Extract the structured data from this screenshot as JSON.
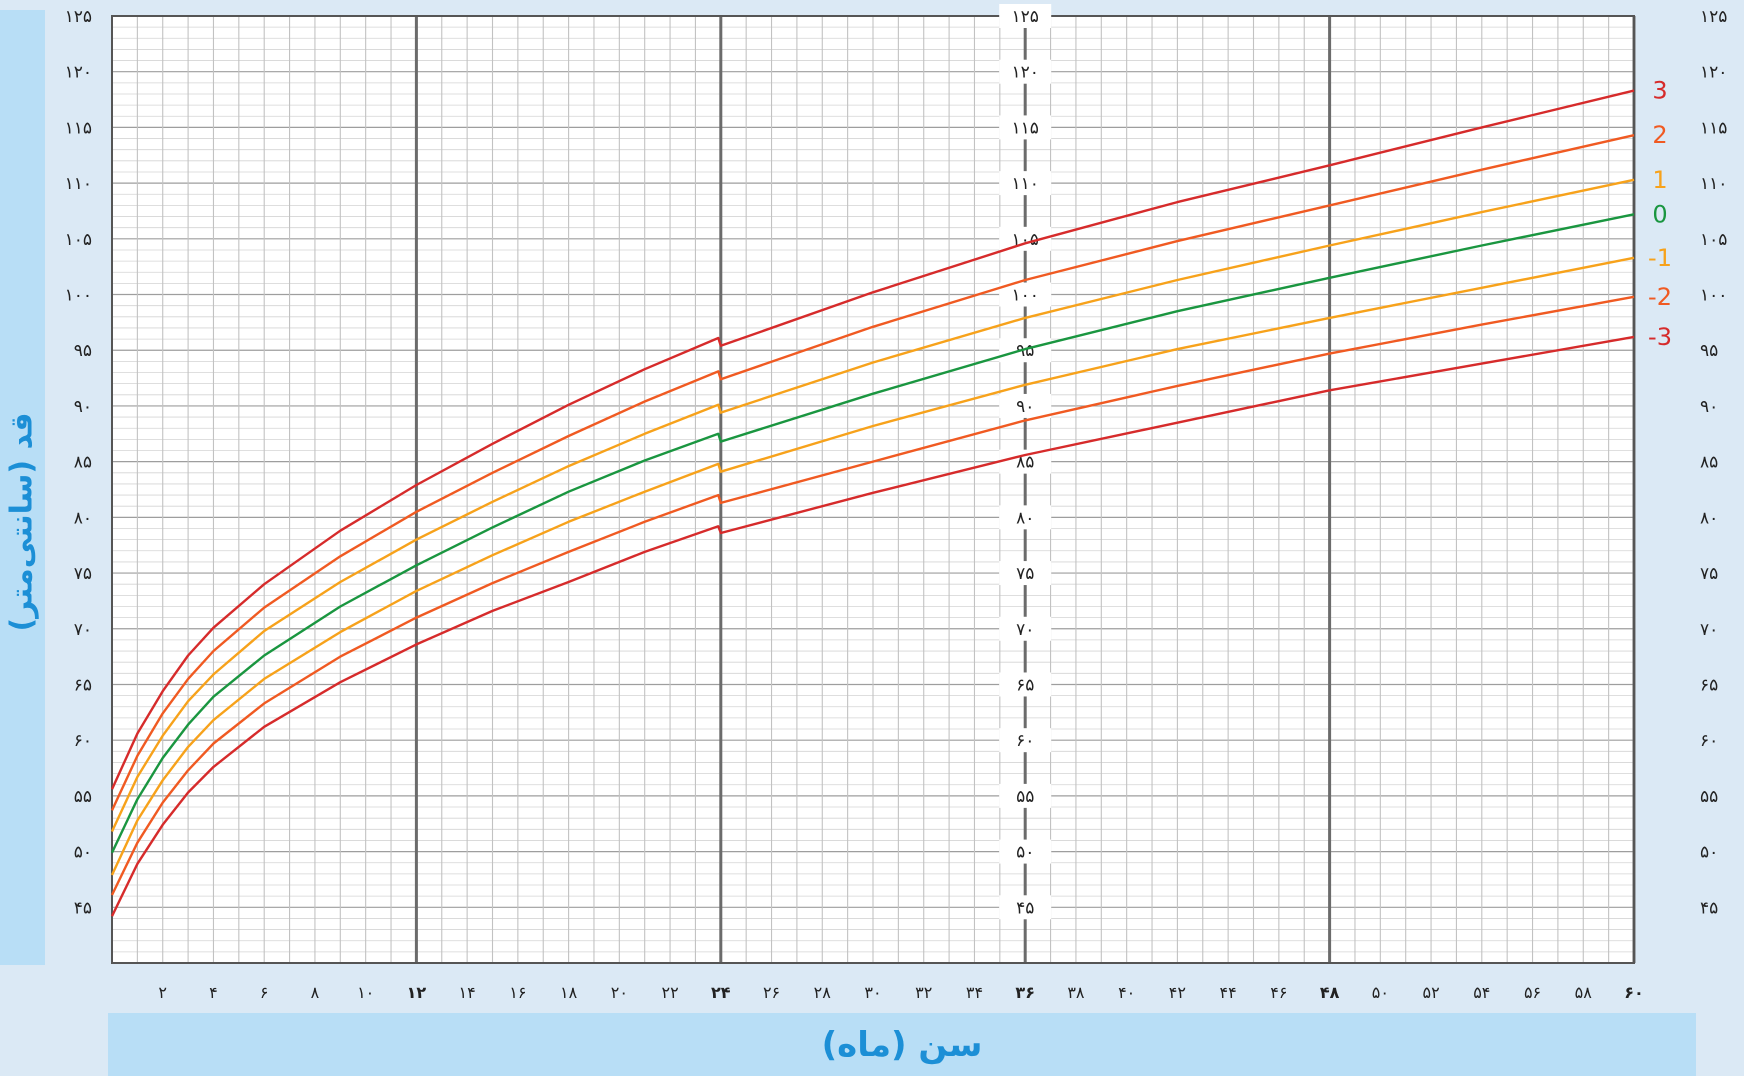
{
  "chart_data": {
    "type": "line",
    "ylabel": "قد (سانتی‌متر)",
    "xlabel": "سن (ماه)",
    "xlim": [
      0,
      60
    ],
    "ylim": [
      40,
      125
    ],
    "x_ticks": [
      {
        "value": 2,
        "label": "۲"
      },
      {
        "value": 4,
        "label": "۴"
      },
      {
        "value": 6,
        "label": "۶"
      },
      {
        "value": 8,
        "label": "۸"
      },
      {
        "value": 10,
        "label": "۱۰"
      },
      {
        "value": 12,
        "label": "۱۲",
        "bold": true
      },
      {
        "value": 14,
        "label": "۱۴"
      },
      {
        "value": 16,
        "label": "۱۶"
      },
      {
        "value": 18,
        "label": "۱۸"
      },
      {
        "value": 20,
        "label": "۲۰"
      },
      {
        "value": 22,
        "label": "۲۲"
      },
      {
        "value": 24,
        "label": "۲۴",
        "bold": true
      },
      {
        "value": 26,
        "label": "۲۶"
      },
      {
        "value": 28,
        "label": "۲۸"
      },
      {
        "value": 30,
        "label": "۳۰"
      },
      {
        "value": 32,
        "label": "۳۲"
      },
      {
        "value": 34,
        "label": "۳۴"
      },
      {
        "value": 36,
        "label": "۳۶",
        "bold": true
      },
      {
        "value": 38,
        "label": "۳۸"
      },
      {
        "value": 40,
        "label": "۴۰"
      },
      {
        "value": 42,
        "label": "۴۲"
      },
      {
        "value": 44,
        "label": "۴۴"
      },
      {
        "value": 46,
        "label": "۴۶"
      },
      {
        "value": 48,
        "label": "۴۸",
        "bold": true
      },
      {
        "value": 50,
        "label": "۵۰"
      },
      {
        "value": 52,
        "label": "۵۲"
      },
      {
        "value": 54,
        "label": "۵۴"
      },
      {
        "value": 56,
        "label": "۵۶"
      },
      {
        "value": 58,
        "label": "۵۸"
      },
      {
        "value": 60,
        "label": "۶۰",
        "bold": true
      }
    ],
    "y_ticks": [
      {
        "value": 45,
        "label": "۴۵"
      },
      {
        "value": 50,
        "label": "۵۰"
      },
      {
        "value": 55,
        "label": "۵۵"
      },
      {
        "value": 60,
        "label": "۶۰"
      },
      {
        "value": 65,
        "label": "۶۵"
      },
      {
        "value": 70,
        "label": "۷۰"
      },
      {
        "value": 75,
        "label": "۷۵"
      },
      {
        "value": 80,
        "label": "۸۰"
      },
      {
        "value": 85,
        "label": "۸۵"
      },
      {
        "value": 90,
        "label": "۹۰"
      },
      {
        "value": 95,
        "label": "۹۵"
      },
      {
        "value": 100,
        "label": "۱۰۰"
      },
      {
        "value": 105,
        "label": "۱۰۵"
      },
      {
        "value": 110,
        "label": "۱۱۰"
      },
      {
        "value": 115,
        "label": "۱۱۵"
      },
      {
        "value": 120,
        "label": "۱۲۰"
      },
      {
        "value": 125,
        "label": "۱۲۵"
      }
    ],
    "grid": true,
    "series": [
      {
        "name": "3",
        "color": "#d62b2b",
        "x": [
          0,
          1,
          2,
          3,
          4,
          6,
          9,
          12,
          15,
          18,
          21,
          23.9,
          24,
          30,
          36,
          42,
          48,
          54,
          60
        ],
        "y": [
          55.6,
          60.6,
          64.4,
          67.6,
          70.1,
          74.0,
          78.8,
          82.9,
          86.6,
          90.1,
          93.3,
          96.1,
          95.4,
          100.2,
          104.6,
          108.3,
          111.6,
          115.0,
          118.3
        ]
      },
      {
        "name": "2",
        "color": "#f05a22",
        "x": [
          0,
          1,
          2,
          3,
          4,
          6,
          9,
          12,
          15,
          18,
          21,
          23.9,
          24,
          30,
          36,
          42,
          48,
          54,
          60
        ],
        "y": [
          53.7,
          58.6,
          62.4,
          65.5,
          68.0,
          71.9,
          76.5,
          80.5,
          84.0,
          87.3,
          90.4,
          93.1,
          92.4,
          97.1,
          101.3,
          104.8,
          108.0,
          111.2,
          114.3
        ]
      },
      {
        "name": "1",
        "color": "#f7a21b",
        "x": [
          0,
          1,
          2,
          3,
          4,
          6,
          9,
          12,
          15,
          18,
          21,
          23.9,
          24,
          30,
          36,
          42,
          48,
          54,
          60
        ],
        "y": [
          51.8,
          56.7,
          60.4,
          63.5,
          65.9,
          69.8,
          74.2,
          78.0,
          81.4,
          84.6,
          87.5,
          90.1,
          89.4,
          93.9,
          97.9,
          101.3,
          104.4,
          107.4,
          110.3
        ]
      },
      {
        "name": "0",
        "color": "#1a9640",
        "x": [
          0,
          1,
          2,
          3,
          4,
          6,
          9,
          12,
          15,
          18,
          21,
          23.9,
          24,
          30,
          36,
          42,
          48,
          54,
          60
        ],
        "y": [
          49.9,
          54.7,
          58.4,
          61.4,
          63.9,
          67.6,
          72.0,
          75.7,
          79.1,
          82.3,
          85.1,
          87.5,
          86.8,
          91.1,
          95.1,
          98.5,
          101.5,
          104.4,
          107.2
        ]
      },
      {
        "name": "-1",
        "color": "#f7a21b",
        "x": [
          0,
          1,
          2,
          3,
          4,
          6,
          9,
          12,
          15,
          18,
          21,
          23.9,
          24,
          30,
          36,
          42,
          48,
          54,
          60
        ],
        "y": [
          47.9,
          52.8,
          56.4,
          59.4,
          61.8,
          65.5,
          69.7,
          73.4,
          76.6,
          79.6,
          82.3,
          84.8,
          84.1,
          88.2,
          91.9,
          95.1,
          97.9,
          100.6,
          103.3
        ]
      },
      {
        "name": "-2",
        "color": "#f05a22",
        "x": [
          0,
          1,
          2,
          3,
          4,
          6,
          9,
          12,
          15,
          18,
          21,
          23.9,
          24,
          30,
          36,
          42,
          48,
          54,
          60
        ],
        "y": [
          46.1,
          50.8,
          54.4,
          57.3,
          59.7,
          63.3,
          67.5,
          71.0,
          74.1,
          76.9,
          79.6,
          82.0,
          81.3,
          85.0,
          88.7,
          91.8,
          94.7,
          97.3,
          99.8
        ]
      },
      {
        "name": "-3",
        "color": "#d62b2b",
        "x": [
          0,
          1,
          2,
          3,
          4,
          6,
          9,
          12,
          15,
          18,
          21,
          23.9,
          24,
          30,
          36,
          42,
          48,
          54,
          60
        ],
        "y": [
          44.2,
          48.9,
          52.4,
          55.3,
          57.6,
          61.2,
          65.2,
          68.6,
          71.6,
          74.2,
          76.9,
          79.2,
          78.6,
          82.2,
          85.6,
          88.5,
          91.4,
          93.8,
          96.2
        ]
      }
    ]
  }
}
